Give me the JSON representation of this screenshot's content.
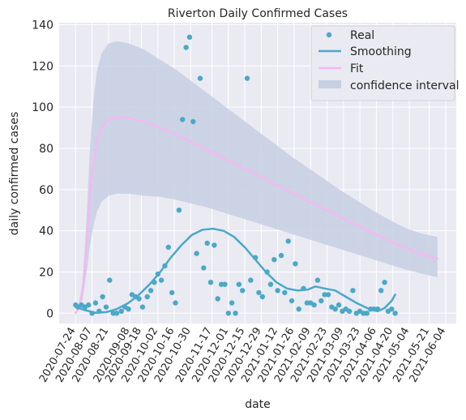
{
  "chart_data": {
    "type": "line",
    "title": "Riverton Daily Confirmed Cases",
    "xlabel": "date",
    "ylabel": "daily confirmed cases",
    "ylim": [
      -5,
      141
    ],
    "x_range": [
      "2020-07-10",
      "2021-06-13"
    ],
    "x_ticks": [
      "2020-07-24",
      "2020-08-07",
      "2020-08-21",
      "2020-09-08",
      "2020-09-18",
      "2020-10-02",
      "2020-10-16",
      "2020-10-30",
      "2020-11-17",
      "2020-12-01",
      "2020-12-15",
      "2020-12-29",
      "2021-01-12",
      "2021-01-26",
      "2021-02-09",
      "2021-02-23",
      "2021-03-09",
      "2021-03-23",
      "2021-04-06",
      "2021-04-20",
      "2021-05-04",
      "2021-05-21",
      "2021-06-04"
    ],
    "y_ticks": [
      0,
      20,
      40,
      60,
      80,
      100,
      120,
      140
    ],
    "grid": true,
    "legend_position": "upper right",
    "colors": {
      "background": "#eaeaf2",
      "grid": "#ffffff",
      "real": "#4aa8c8",
      "smoothing": "#4aa8c8",
      "fit": "#f5b8f2",
      "ci": "#c7cfe3"
    },
    "legend": [
      {
        "label": "Real",
        "kind": "point"
      },
      {
        "label": "Smoothing",
        "kind": "line"
      },
      {
        "label": "Fit",
        "kind": "line"
      },
      {
        "label": "confidence interval",
        "kind": "patch"
      }
    ],
    "series": [
      {
        "name": "Real",
        "kind": "scatter",
        "points": [
          [
            "2020-07-24",
            4
          ],
          [
            "2020-07-26",
            3
          ],
          [
            "2020-07-29",
            4
          ],
          [
            "2020-08-01",
            3
          ],
          [
            "2020-08-04",
            4
          ],
          [
            "2020-08-07",
            0
          ],
          [
            "2020-08-10",
            5
          ],
          [
            "2020-08-13",
            1
          ],
          [
            "2020-08-16",
            8
          ],
          [
            "2020-08-19",
            3
          ],
          [
            "2020-08-22",
            16
          ],
          [
            "2020-08-25",
            0
          ],
          [
            "2020-08-28",
            0
          ],
          [
            "2020-09-01",
            1
          ],
          [
            "2020-09-04",
            3
          ],
          [
            "2020-09-07",
            2
          ],
          [
            "2020-09-10",
            9
          ],
          [
            "2020-09-13",
            8
          ],
          [
            "2020-09-16",
            7
          ],
          [
            "2020-09-19",
            3
          ],
          [
            "2020-09-23",
            8
          ],
          [
            "2020-09-26",
            11
          ],
          [
            "2020-09-29",
            15
          ],
          [
            "2020-10-02",
            19
          ],
          [
            "2020-10-05",
            16
          ],
          [
            "2020-10-08",
            23
          ],
          [
            "2020-10-11",
            32
          ],
          [
            "2020-10-14",
            10
          ],
          [
            "2020-10-17",
            5
          ],
          [
            "2020-10-20",
            50
          ],
          [
            "2020-10-23",
            94
          ],
          [
            "2020-10-26",
            129
          ],
          [
            "2020-10-29",
            134
          ],
          [
            "2020-11-01",
            93
          ],
          [
            "2020-11-04",
            29
          ],
          [
            "2020-11-07",
            114
          ],
          [
            "2020-11-10",
            22
          ],
          [
            "2020-11-13",
            34
          ],
          [
            "2020-11-16",
            15
          ],
          [
            "2020-11-19",
            33
          ],
          [
            "2020-11-22",
            7
          ],
          [
            "2020-11-25",
            14
          ],
          [
            "2020-11-28",
            14
          ],
          [
            "2020-12-01",
            0
          ],
          [
            "2020-12-04",
            5
          ],
          [
            "2020-12-07",
            0
          ],
          [
            "2020-12-10",
            14
          ],
          [
            "2020-12-13",
            11
          ],
          [
            "2020-12-17",
            114
          ],
          [
            "2020-12-20",
            16
          ],
          [
            "2020-12-24",
            27
          ],
          [
            "2020-12-27",
            10
          ],
          [
            "2020-12-30",
            8
          ],
          [
            "2021-01-03",
            20
          ],
          [
            "2021-01-06",
            14
          ],
          [
            "2021-01-09",
            26
          ],
          [
            "2021-01-12",
            11
          ],
          [
            "2021-01-15",
            28
          ],
          [
            "2021-01-18",
            10
          ],
          [
            "2021-01-21",
            35
          ],
          [
            "2021-01-24",
            6
          ],
          [
            "2021-01-27",
            24
          ],
          [
            "2021-01-30",
            2
          ],
          [
            "2021-02-03",
            12
          ],
          [
            "2021-02-06",
            5
          ],
          [
            "2021-02-09",
            5
          ],
          [
            "2021-02-12",
            4
          ],
          [
            "2021-02-15",
            16
          ],
          [
            "2021-02-18",
            6
          ],
          [
            "2021-02-21",
            9
          ],
          [
            "2021-02-24",
            9
          ],
          [
            "2021-02-27",
            3
          ],
          [
            "2021-03-02",
            2
          ],
          [
            "2021-03-05",
            4
          ],
          [
            "2021-03-08",
            1
          ],
          [
            "2021-03-11",
            2
          ],
          [
            "2021-03-14",
            1
          ],
          [
            "2021-03-17",
            11
          ],
          [
            "2021-03-20",
            0
          ],
          [
            "2021-03-23",
            1
          ],
          [
            "2021-03-26",
            0
          ],
          [
            "2021-03-29",
            0
          ],
          [
            "2021-04-01",
            2
          ],
          [
            "2021-04-04",
            2
          ],
          [
            "2021-04-07",
            2
          ],
          [
            "2021-04-10",
            11
          ],
          [
            "2021-04-13",
            15
          ],
          [
            "2021-04-16",
            1
          ],
          [
            "2021-04-19",
            2
          ],
          [
            "2021-04-22",
            0
          ]
        ]
      },
      {
        "name": "Smoothing",
        "kind": "line",
        "points": [
          [
            "2020-07-24",
            3
          ],
          [
            "2020-08-01",
            1.5
          ],
          [
            "2020-08-10",
            0.2
          ],
          [
            "2020-08-19",
            0.5
          ],
          [
            "2020-08-28",
            2
          ],
          [
            "2020-09-07",
            5
          ],
          [
            "2020-09-16",
            9
          ],
          [
            "2020-09-25",
            14
          ],
          [
            "2020-10-04",
            20
          ],
          [
            "2020-10-13",
            27
          ],
          [
            "2020-10-22",
            33
          ],
          [
            "2020-10-31",
            38
          ],
          [
            "2020-11-09",
            40.5
          ],
          [
            "2020-11-18",
            41
          ],
          [
            "2020-11-27",
            40
          ],
          [
            "2020-12-06",
            37
          ],
          [
            "2020-12-15",
            32
          ],
          [
            "2020-12-24",
            26
          ],
          [
            "2021-01-02",
            20
          ],
          [
            "2021-01-11",
            15
          ],
          [
            "2021-01-20",
            12
          ],
          [
            "2021-01-29",
            11
          ],
          [
            "2021-02-07",
            11.5
          ],
          [
            "2021-02-13",
            13
          ],
          [
            "2021-02-21",
            12
          ],
          [
            "2021-03-02",
            11
          ],
          [
            "2021-03-11",
            8
          ],
          [
            "2021-03-20",
            5
          ],
          [
            "2021-03-29",
            2.5
          ],
          [
            "2021-04-07",
            1
          ],
          [
            "2021-04-13",
            2.5
          ],
          [
            "2021-04-19",
            6
          ],
          [
            "2021-04-22",
            9
          ]
        ]
      },
      {
        "name": "Fit",
        "kind": "line",
        "points": [
          [
            "2020-07-24",
            0
          ],
          [
            "2020-07-27",
            3
          ],
          [
            "2020-07-30",
            12
          ],
          [
            "2020-08-02",
            30
          ],
          [
            "2020-08-05",
            55
          ],
          [
            "2020-08-08",
            72
          ],
          [
            "2020-08-11",
            83
          ],
          [
            "2020-08-15",
            90
          ],
          [
            "2020-08-21",
            94
          ],
          [
            "2020-08-28",
            95
          ],
          [
            "2020-09-07",
            95
          ],
          [
            "2020-09-20",
            93
          ],
          [
            "2020-10-04",
            90
          ],
          [
            "2020-10-18",
            86.5
          ],
          [
            "2020-11-01",
            82.5
          ],
          [
            "2020-11-15",
            78.5
          ],
          [
            "2020-11-29",
            74.5
          ],
          [
            "2020-12-13",
            70.5
          ],
          [
            "2020-12-27",
            66.5
          ],
          [
            "2021-01-10",
            62.5
          ],
          [
            "2021-01-24",
            58.5
          ],
          [
            "2021-02-07",
            54.5
          ],
          [
            "2021-02-21",
            50.5
          ],
          [
            "2021-03-07",
            46.5
          ],
          [
            "2021-03-21",
            42.5
          ],
          [
            "2021-04-04",
            38.5
          ],
          [
            "2021-04-18",
            35
          ],
          [
            "2021-05-02",
            31.5
          ],
          [
            "2021-05-16",
            28.5
          ],
          [
            "2021-05-28",
            26.5
          ]
        ]
      },
      {
        "name": "confidence interval",
        "kind": "band",
        "points": [
          [
            "2020-07-24",
            0,
            0
          ],
          [
            "2020-07-27",
            4,
            2
          ],
          [
            "2020-07-30",
            16,
            7
          ],
          [
            "2020-08-02",
            42,
            18
          ],
          [
            "2020-08-05",
            78,
            32
          ],
          [
            "2020-08-08",
            102,
            42
          ],
          [
            "2020-08-11",
            117,
            49
          ],
          [
            "2020-08-15",
            126,
            54
          ],
          [
            "2020-08-21",
            131,
            57
          ],
          [
            "2020-08-28",
            132,
            58
          ],
          [
            "2020-09-07",
            131,
            58
          ],
          [
            "2020-09-20",
            128,
            57
          ],
          [
            "2020-10-04",
            123,
            56.5
          ],
          [
            "2020-10-18",
            118,
            55
          ],
          [
            "2020-11-01",
            112,
            53
          ],
          [
            "2020-11-15",
            106,
            51
          ],
          [
            "2020-11-29",
            100,
            48.5
          ],
          [
            "2020-12-13",
            94,
            46
          ],
          [
            "2020-12-27",
            88,
            43.5
          ],
          [
            "2021-01-10",
            82,
            41
          ],
          [
            "2021-01-24",
            76,
            38.5
          ],
          [
            "2021-02-07",
            70.5,
            36
          ],
          [
            "2021-02-21",
            65,
            33.5
          ],
          [
            "2021-03-07",
            59.5,
            31
          ],
          [
            "2021-03-21",
            54.5,
            28.5
          ],
          [
            "2021-04-04",
            49.5,
            26
          ],
          [
            "2021-04-18",
            45,
            23.5
          ],
          [
            "2021-05-02",
            41,
            21
          ],
          [
            "2021-05-16",
            38.5,
            19
          ],
          [
            "2021-05-28",
            37,
            17.5
          ]
        ]
      }
    ]
  }
}
